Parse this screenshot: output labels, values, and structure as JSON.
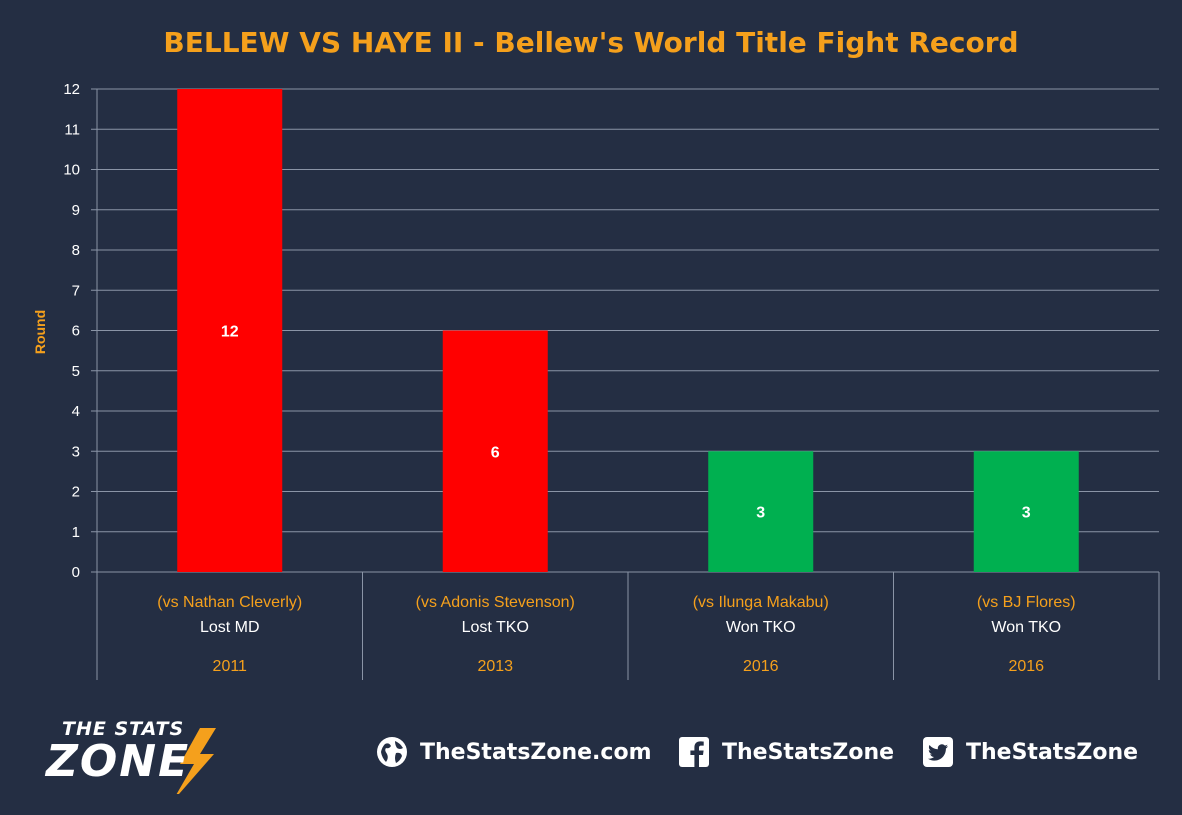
{
  "chart_data": {
    "type": "bar",
    "title": "BELLEW VS HAYE II - Bellew's World Title Fight Record",
    "ylabel": "Round",
    "ylim": [
      0,
      12
    ],
    "yticks": [
      0,
      1,
      2,
      3,
      4,
      5,
      6,
      7,
      8,
      9,
      10,
      11,
      12
    ],
    "grid": true,
    "categories": [
      {
        "opponent": "(vs Nathan Cleverly)",
        "result": "Lost MD",
        "year": "2011"
      },
      {
        "opponent": "(vs Adonis Stevenson)",
        "result": "Lost TKO",
        "year": "2013"
      },
      {
        "opponent": "(vs Ilunga Makabu)",
        "result": "Won TKO",
        "year": "2016"
      },
      {
        "opponent": "(vs BJ Flores)",
        "result": "Won TKO",
        "year": "2016"
      }
    ],
    "values": [
      12,
      6,
      3,
      3
    ],
    "data_labels": [
      "12",
      "6",
      "3",
      "3"
    ],
    "bar_colors": [
      "#ff0000",
      "#ff0000",
      "#00b050",
      "#00b050"
    ]
  },
  "colors": {
    "background": "#242e43",
    "accent": "#f5a01c",
    "grid": "#8a94a6",
    "text": "#ffffff"
  },
  "footer": {
    "logo_line1": "THE STATS",
    "logo_line2": "ZONE",
    "website": "TheStatsZone.com",
    "facebook": "TheStatsZone",
    "twitter": "TheStatsZone",
    "icons": [
      "globe-icon",
      "facebook-icon",
      "twitter-icon"
    ]
  }
}
